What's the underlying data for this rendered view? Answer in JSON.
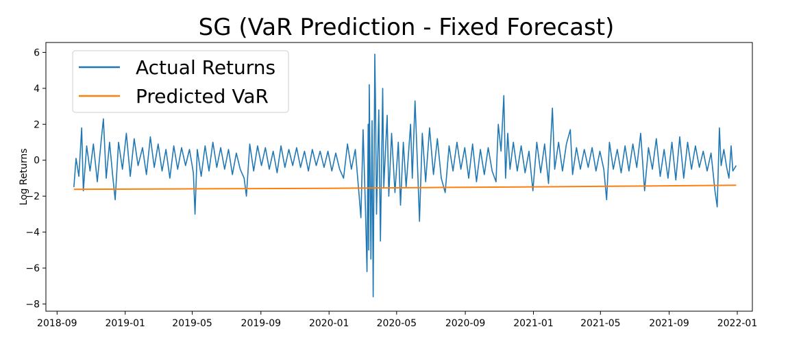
{
  "chart_data": {
    "type": "line",
    "title": "SG (VaR Prediction - Fixed Forecast)",
    "xlabel": "",
    "ylabel": "Log Returns",
    "x_range": [
      "2018-08-12",
      "2022-01-28"
    ],
    "ylim": [
      -8.4,
      6.55
    ],
    "x_ticks": [
      "2018-09",
      "2019-01",
      "2019-05",
      "2019-09",
      "2020-01",
      "2020-05",
      "2020-09",
      "2021-01",
      "2021-05",
      "2021-09",
      "2022-01"
    ],
    "y_ticks": [
      6,
      4,
      2,
      0,
      -2,
      -4,
      -6,
      -8
    ],
    "grid": false,
    "legend_position": "upper-left",
    "series": [
      {
        "name": "Actual Returns",
        "color": "#1f77b4",
        "style": "daily log returns (high frequency, approximated)",
        "points": [
          [
            "2018-10-01",
            -1.5
          ],
          [
            "2018-10-05",
            0.1
          ],
          [
            "2018-10-10",
            -0.9
          ],
          [
            "2018-10-15",
            1.8
          ],
          [
            "2018-10-18",
            -1.7
          ],
          [
            "2018-10-24",
            0.8
          ],
          [
            "2018-10-30",
            -0.6
          ],
          [
            "2018-11-05",
            0.9
          ],
          [
            "2018-11-12",
            -1.2
          ],
          [
            "2018-11-19",
            1.1
          ],
          [
            "2018-11-23",
            2.3
          ],
          [
            "2018-11-28",
            -1.0
          ],
          [
            "2018-12-04",
            1.0
          ],
          [
            "2018-12-10",
            -1.0
          ],
          [
            "2018-12-14",
            -2.2
          ],
          [
            "2018-12-20",
            1.0
          ],
          [
            "2018-12-27",
            -0.5
          ],
          [
            "2019-01-03",
            1.5
          ],
          [
            "2019-01-10",
            -0.9
          ],
          [
            "2019-01-17",
            1.2
          ],
          [
            "2019-01-24",
            -0.3
          ],
          [
            "2019-02-01",
            0.7
          ],
          [
            "2019-02-08",
            -0.8
          ],
          [
            "2019-02-15",
            1.3
          ],
          [
            "2019-02-22",
            -0.4
          ],
          [
            "2019-03-01",
            0.9
          ],
          [
            "2019-03-08",
            -0.6
          ],
          [
            "2019-03-15",
            0.6
          ],
          [
            "2019-03-22",
            -1.0
          ],
          [
            "2019-03-29",
            0.8
          ],
          [
            "2019-04-05",
            -0.5
          ],
          [
            "2019-04-12",
            0.7
          ],
          [
            "2019-04-19",
            -0.3
          ],
          [
            "2019-04-26",
            0.6
          ],
          [
            "2019-05-03",
            -0.7
          ],
          [
            "2019-05-06",
            -3.0
          ],
          [
            "2019-05-10",
            0.6
          ],
          [
            "2019-05-17",
            -0.9
          ],
          [
            "2019-05-24",
            0.8
          ],
          [
            "2019-05-31",
            -0.6
          ],
          [
            "2019-06-07",
            1.0
          ],
          [
            "2019-06-14",
            -0.4
          ],
          [
            "2019-06-21",
            0.7
          ],
          [
            "2019-06-28",
            -0.5
          ],
          [
            "2019-07-05",
            0.6
          ],
          [
            "2019-07-12",
            -0.8
          ],
          [
            "2019-07-19",
            0.4
          ],
          [
            "2019-07-26",
            -0.5
          ],
          [
            "2019-08-02",
            -1.0
          ],
          [
            "2019-08-06",
            -2.0
          ],
          [
            "2019-08-12",
            0.9
          ],
          [
            "2019-08-19",
            -0.6
          ],
          [
            "2019-08-26",
            0.8
          ],
          [
            "2019-09-02",
            -0.3
          ],
          [
            "2019-09-09",
            0.7
          ],
          [
            "2019-09-16",
            -0.5
          ],
          [
            "2019-09-23",
            0.5
          ],
          [
            "2019-09-30",
            -0.7
          ],
          [
            "2019-10-07",
            0.8
          ],
          [
            "2019-10-14",
            -0.4
          ],
          [
            "2019-10-21",
            0.6
          ],
          [
            "2019-10-28",
            -0.3
          ],
          [
            "2019-11-04",
            0.7
          ],
          [
            "2019-11-11",
            -0.4
          ],
          [
            "2019-11-18",
            0.5
          ],
          [
            "2019-11-25",
            -0.6
          ],
          [
            "2019-12-02",
            0.6
          ],
          [
            "2019-12-09",
            -0.3
          ],
          [
            "2019-12-16",
            0.5
          ],
          [
            "2019-12-23",
            -0.4
          ],
          [
            "2019-12-30",
            0.5
          ],
          [
            "2020-01-06",
            -0.6
          ],
          [
            "2020-01-13",
            0.4
          ],
          [
            "2020-01-20",
            -0.5
          ],
          [
            "2020-01-27",
            -1.0
          ],
          [
            "2020-02-03",
            0.9
          ],
          [
            "2020-02-10",
            -0.5
          ],
          [
            "2020-02-17",
            0.6
          ],
          [
            "2020-02-24",
            -2.0
          ],
          [
            "2020-02-27",
            -3.2
          ],
          [
            "2020-03-02",
            1.7
          ],
          [
            "2020-03-06",
            -2.5
          ],
          [
            "2020-03-09",
            -6.2
          ],
          [
            "2020-03-11",
            2.0
          ],
          [
            "2020-03-12",
            -5.0
          ],
          [
            "2020-03-13",
            4.2
          ],
          [
            "2020-03-16",
            -5.5
          ],
          [
            "2020-03-18",
            2.2
          ],
          [
            "2020-03-20",
            -7.6
          ],
          [
            "2020-03-23",
            5.9
          ],
          [
            "2020-03-24",
            3.5
          ],
          [
            "2020-03-26",
            -3.0
          ],
          [
            "2020-03-30",
            2.8
          ],
          [
            "2020-04-02",
            -4.5
          ],
          [
            "2020-04-06",
            4.0
          ],
          [
            "2020-04-08",
            -1.5
          ],
          [
            "2020-04-14",
            2.5
          ],
          [
            "2020-04-17",
            -2.0
          ],
          [
            "2020-04-22",
            1.5
          ],
          [
            "2020-04-28",
            -1.8
          ],
          [
            "2020-05-04",
            1.0
          ],
          [
            "2020-05-08",
            -2.5
          ],
          [
            "2020-05-13",
            1.0
          ],
          [
            "2020-05-18",
            -1.5
          ],
          [
            "2020-05-26",
            2.0
          ],
          [
            "2020-05-29",
            -1.0
          ],
          [
            "2020-06-03",
            3.3
          ],
          [
            "2020-06-08",
            -0.8
          ],
          [
            "2020-06-11",
            -3.4
          ],
          [
            "2020-06-16",
            1.5
          ],
          [
            "2020-06-22",
            -1.2
          ],
          [
            "2020-06-29",
            1.8
          ],
          [
            "2020-07-06",
            -0.8
          ],
          [
            "2020-07-13",
            1.2
          ],
          [
            "2020-07-20",
            -1.0
          ],
          [
            "2020-07-27",
            -1.8
          ],
          [
            "2020-08-03",
            0.8
          ],
          [
            "2020-08-10",
            -0.6
          ],
          [
            "2020-08-17",
            1.0
          ],
          [
            "2020-08-24",
            -0.5
          ],
          [
            "2020-08-31",
            0.7
          ],
          [
            "2020-09-07",
            -1.0
          ],
          [
            "2020-09-14",
            0.9
          ],
          [
            "2020-09-21",
            -1.2
          ],
          [
            "2020-09-28",
            0.6
          ],
          [
            "2020-10-05",
            -0.8
          ],
          [
            "2020-10-12",
            0.7
          ],
          [
            "2020-10-19",
            -0.6
          ],
          [
            "2020-10-26",
            -1.2
          ],
          [
            "2020-10-30",
            2.0
          ],
          [
            "2020-11-04",
            0.5
          ],
          [
            "2020-11-09",
            3.6
          ],
          [
            "2020-11-12",
            -1.0
          ],
          [
            "2020-11-16",
            1.5
          ],
          [
            "2020-11-20",
            -0.5
          ],
          [
            "2020-11-26",
            1.0
          ],
          [
            "2020-12-03",
            -0.6
          ],
          [
            "2020-12-10",
            0.8
          ],
          [
            "2020-12-17",
            -0.7
          ],
          [
            "2020-12-24",
            0.5
          ],
          [
            "2020-12-31",
            -1.7
          ],
          [
            "2021-01-07",
            1.0
          ],
          [
            "2021-01-14",
            -0.7
          ],
          [
            "2021-01-21",
            0.9
          ],
          [
            "2021-01-28",
            -1.3
          ],
          [
            "2021-02-04",
            2.9
          ],
          [
            "2021-02-08",
            -0.5
          ],
          [
            "2021-02-15",
            1.0
          ],
          [
            "2021-02-22",
            -0.6
          ],
          [
            "2021-03-01",
            0.9
          ],
          [
            "2021-03-08",
            1.7
          ],
          [
            "2021-03-12",
            -0.8
          ],
          [
            "2021-03-19",
            0.7
          ],
          [
            "2021-03-26",
            -0.5
          ],
          [
            "2021-04-02",
            0.6
          ],
          [
            "2021-04-09",
            -0.4
          ],
          [
            "2021-04-16",
            0.7
          ],
          [
            "2021-04-23",
            -0.6
          ],
          [
            "2021-04-30",
            0.5
          ],
          [
            "2021-05-07",
            -0.5
          ],
          [
            "2021-05-12",
            -2.2
          ],
          [
            "2021-05-17",
            1.0
          ],
          [
            "2021-05-24",
            -0.5
          ],
          [
            "2021-05-31",
            0.6
          ],
          [
            "2021-06-07",
            -0.7
          ],
          [
            "2021-06-14",
            0.8
          ],
          [
            "2021-06-21",
            -0.6
          ],
          [
            "2021-06-28",
            0.9
          ],
          [
            "2021-07-05",
            -0.4
          ],
          [
            "2021-07-12",
            1.5
          ],
          [
            "2021-07-19",
            -1.7
          ],
          [
            "2021-07-26",
            0.7
          ],
          [
            "2021-08-02",
            -0.5
          ],
          [
            "2021-08-09",
            1.2
          ],
          [
            "2021-08-16",
            -0.9
          ],
          [
            "2021-08-23",
            0.6
          ],
          [
            "2021-08-30",
            -1.0
          ],
          [
            "2021-09-06",
            1.0
          ],
          [
            "2021-09-13",
            -1.1
          ],
          [
            "2021-09-20",
            1.3
          ],
          [
            "2021-09-27",
            -1.0
          ],
          [
            "2021-10-04",
            1.0
          ],
          [
            "2021-10-11",
            -0.5
          ],
          [
            "2021-10-18",
            0.8
          ],
          [
            "2021-10-25",
            -0.4
          ],
          [
            "2021-11-01",
            0.5
          ],
          [
            "2021-11-08",
            -0.6
          ],
          [
            "2021-11-15",
            0.4
          ],
          [
            "2021-11-22",
            -1.7
          ],
          [
            "2021-11-26",
            -2.6
          ],
          [
            "2021-11-30",
            1.8
          ],
          [
            "2021-12-03",
            -0.3
          ],
          [
            "2021-12-08",
            0.6
          ],
          [
            "2021-12-13",
            -0.4
          ],
          [
            "2021-12-17",
            -1.0
          ],
          [
            "2021-12-21",
            0.8
          ],
          [
            "2021-12-24",
            -0.6
          ],
          [
            "2021-12-30",
            -0.3
          ]
        ]
      },
      {
        "name": "Predicted VaR",
        "color": "#ff7f0e",
        "points": [
          [
            "2018-10-01",
            -1.62
          ],
          [
            "2019-06-01",
            -1.59
          ],
          [
            "2020-01-01",
            -1.56
          ],
          [
            "2020-07-01",
            -1.52
          ],
          [
            "2021-01-01",
            -1.48
          ],
          [
            "2021-07-01",
            -1.44
          ],
          [
            "2021-12-30",
            -1.39
          ]
        ]
      }
    ]
  }
}
